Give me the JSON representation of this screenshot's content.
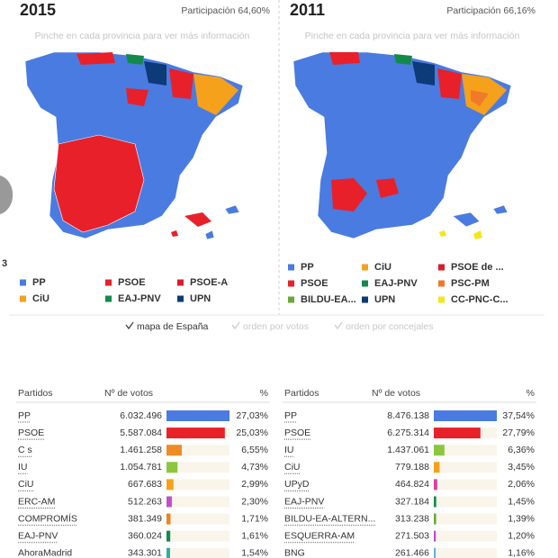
{
  "panels": [
    {
      "year": "2015",
      "participation": "Participación 64,60%",
      "hint": "Pinche en cada provincia para ver más información",
      "legend": [
        {
          "label": "PP",
          "color": "#4a7be0"
        },
        {
          "label": "PSOE",
          "color": "#e8202a"
        },
        {
          "label": "PSOE-A",
          "color": "#d81e2c"
        },
        {
          "label": "CiU",
          "color": "#f5a11c"
        },
        {
          "label": "EAJ-PNV",
          "color": "#138a4c"
        },
        {
          "label": "UPN",
          "color": "#0d3a78"
        }
      ]
    },
    {
      "year": "2011",
      "participation": "Participación 66,16%",
      "hint": "Pinche en cada provincia para ver más información",
      "legend": [
        {
          "label": "PP",
          "color": "#4a7be0"
        },
        {
          "label": "CiU",
          "color": "#f5a11c"
        },
        {
          "label": "PSOE de ...",
          "color": "#d81e2c"
        },
        {
          "label": "PSOE",
          "color": "#e8202a"
        },
        {
          "label": "EAJ-PNV",
          "color": "#138a4c"
        },
        {
          "label": "PSC-PM",
          "color": "#f07a2a"
        },
        {
          "label": "BILDU-EA...",
          "color": "#6aa83a"
        },
        {
          "label": "UPN",
          "color": "#0d3a78"
        },
        {
          "label": "CC-PNC-C...",
          "color": "#f5e61c"
        }
      ]
    }
  ],
  "edge_text": "3",
  "tabs": [
    "mapa de España",
    "orden por votos",
    "orden por concejales"
  ],
  "tables": [
    {
      "headers": [
        "Partidos",
        "Nº de votos",
        "%"
      ],
      "rows": [
        {
          "party": "PP",
          "votes": "6.032.496",
          "percent": 27.03,
          "percent_label": "27,03%",
          "color": "#4a7be0"
        },
        {
          "party": "PSOE",
          "votes": "5.587.084",
          "percent": 25.03,
          "percent_label": "25,03%",
          "color": "#e8202a"
        },
        {
          "party": "C s",
          "votes": "1.461.258",
          "percent": 6.55,
          "percent_label": "6,55%",
          "color": "#f08a24"
        },
        {
          "party": "IU",
          "votes": "1.054.781",
          "percent": 4.73,
          "percent_label": "4,73%",
          "color": "#8cc63f"
        },
        {
          "party": "CiU",
          "votes": "667.683",
          "percent": 2.99,
          "percent_label": "2,99%",
          "color": "#f5a11c"
        },
        {
          "party": "ERC-AM",
          "votes": "512.263",
          "percent": 2.3,
          "percent_label": "2,30%",
          "color": "#c050c8"
        },
        {
          "party": "COMPROMÍS",
          "votes": "381.349",
          "percent": 1.71,
          "percent_label": "1,71%",
          "color": "#f07f1e"
        },
        {
          "party": "EAJ-PNV",
          "votes": "360.024",
          "percent": 1.61,
          "percent_label": "1,61%",
          "color": "#138a4c"
        },
        {
          "party": "AhoraMadrid",
          "votes": "343.301",
          "percent": 1.54,
          "percent_label": "1,54%",
          "color": "#2ab0a0"
        }
      ]
    },
    {
      "headers": [
        "Partidos",
        "Nº de votos",
        "%"
      ],
      "rows": [
        {
          "party": "PP",
          "votes": "8.476.138",
          "percent": 37.54,
          "percent_label": "37,54%",
          "color": "#4a7be0"
        },
        {
          "party": "PSOE",
          "votes": "6.275.314",
          "percent": 27.79,
          "percent_label": "27,79%",
          "color": "#e8202a"
        },
        {
          "party": "IU",
          "votes": "1.437.061",
          "percent": 6.36,
          "percent_label": "6,36%",
          "color": "#8cc63f"
        },
        {
          "party": "CiU",
          "votes": "779.188",
          "percent": 3.45,
          "percent_label": "3,45%",
          "color": "#f5a11c"
        },
        {
          "party": "UPyD",
          "votes": "464.824",
          "percent": 2.06,
          "percent_label": "2,06%",
          "color": "#e040a0"
        },
        {
          "party": "EAJ-PNV",
          "votes": "327.184",
          "percent": 1.45,
          "percent_label": "1,45%",
          "color": "#138a4c"
        },
        {
          "party": "BILDU-EA-ALTERN...",
          "votes": "313.238",
          "percent": 1.39,
          "percent_label": "1,39%",
          "color": "#6aa83a"
        },
        {
          "party": "ESQUERRA-AM",
          "votes": "271.503",
          "percent": 1.2,
          "percent_label": "1,20%",
          "color": "#c050c8"
        },
        {
          "party": "BNG",
          "votes": "261.466",
          "percent": 1.16,
          "percent_label": "1,16%",
          "color": "#6ab0e0"
        }
      ]
    }
  ]
}
